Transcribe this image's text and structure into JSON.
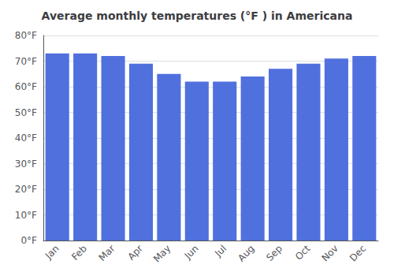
{
  "chart_data": {
    "type": "bar",
    "title": "Average monthly temperatures (°F ) in Americana",
    "categories": [
      "Jan",
      "Feb",
      "Mar",
      "Apr",
      "May",
      "Jun",
      "Jul",
      "Aug",
      "Sep",
      "Oct",
      "Nov",
      "Dec"
    ],
    "values": [
      73,
      73,
      72,
      69,
      65,
      62,
      62,
      64,
      67,
      69,
      71,
      72
    ],
    "ylim": [
      0,
      80
    ],
    "yticks": [
      {
        "value": 0,
        "label": "0°F"
      },
      {
        "value": 10,
        "label": "10°F"
      },
      {
        "value": 20,
        "label": "20°F"
      },
      {
        "value": 30,
        "label": "30°F"
      },
      {
        "value": 40,
        "label": "40°F"
      },
      {
        "value": 50,
        "label": "50°F"
      },
      {
        "value": 60,
        "label": "60°F"
      },
      {
        "value": 70,
        "label": "70°F"
      },
      {
        "value": 80,
        "label": "80°F"
      }
    ],
    "grid": true
  }
}
